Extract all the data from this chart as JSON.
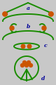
{
  "bg_color": "#c8c8c8",
  "green": "#1a8c00",
  "orange": "#cc5500",
  "blue": "#000099",
  "label_a": "a",
  "label_b": "b",
  "label_c": "c",
  "label_d": "d"
}
